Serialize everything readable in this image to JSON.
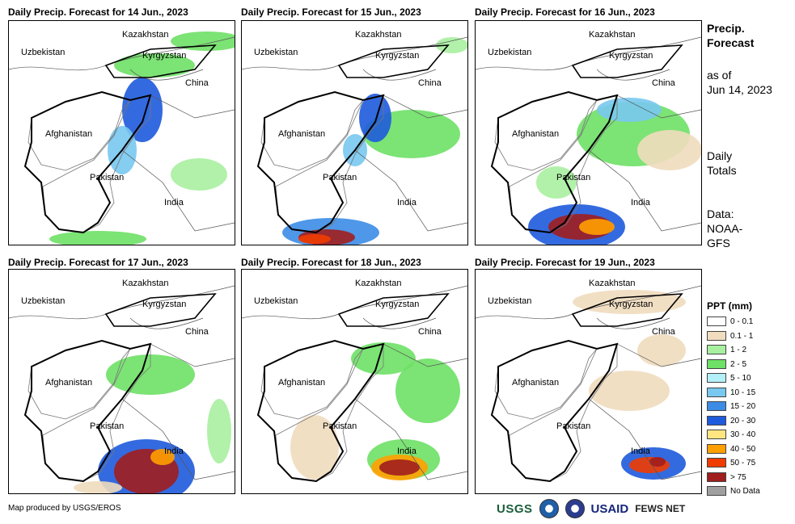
{
  "panels": [
    {
      "title": "Daily Precip. Forecast for 14 Jun., 2023",
      "date": "14 Jun."
    },
    {
      "title": "Daily Precip. Forecast for 15 Jun., 2023",
      "date": "15 Jun."
    },
    {
      "title": "Daily Precip. Forecast for 16 Jun., 2023",
      "date": "16 Jun."
    },
    {
      "title": "Daily Precip. Forecast for 17 Jun., 2023",
      "date": "17 Jun."
    },
    {
      "title": "Daily Precip. Forecast for 18 Jun., 2023",
      "date": "18 Jun."
    },
    {
      "title": "Daily Precip. Forecast for 19 Jun., 2023",
      "date": "19 Jun."
    }
  ],
  "countries": {
    "kazakhstan": "Kazakhstan",
    "uzbekistan": "Uzbekistan",
    "kyrgyzstan": "Kyrgyzstan",
    "china": "China",
    "afghanistan": "Afghanistan",
    "pakistan": "Pakistan",
    "india": "India"
  },
  "side": {
    "title_line1": "Precip.",
    "title_line2": "Forecast",
    "asof_line1": "as of",
    "asof_line2": "Jun 14, 2023",
    "daily_line1": "Daily",
    "daily_line2": "Totals",
    "data_line1": "Data:",
    "data_line2": "NOAA-",
    "data_line3": "GFS"
  },
  "legend": {
    "title": "PPT (mm)",
    "items": [
      {
        "label": "0 - 0.1",
        "color": "#ffffff"
      },
      {
        "label": "0.1 - 1",
        "color": "#f0dcbe"
      },
      {
        "label": "1 - 2",
        "color": "#a8f0a0"
      },
      {
        "label": "2 - 5",
        "color": "#6ee066"
      },
      {
        "label": "5 - 10",
        "color": "#b4f0f8"
      },
      {
        "label": "10 - 15",
        "color": "#78c8f0"
      },
      {
        "label": "15 - 20",
        "color": "#3c8ce6"
      },
      {
        "label": "20 - 30",
        "color": "#1e5adc"
      },
      {
        "label": "30 - 40",
        "color": "#ffe680"
      },
      {
        "label": "40 - 50",
        "color": "#ffa000"
      },
      {
        "label": "50 - 75",
        "color": "#f03c00"
      },
      {
        "label": "> 75",
        "color": "#a01e1e"
      },
      {
        "label": "No Data",
        "color": "#a0a0a0"
      }
    ]
  },
  "footer": {
    "credit": "Map produced by USGS/EROS"
  },
  "logos": {
    "usgs": "USGS",
    "usaid": "USAID",
    "fews": "FEWS NET"
  }
}
